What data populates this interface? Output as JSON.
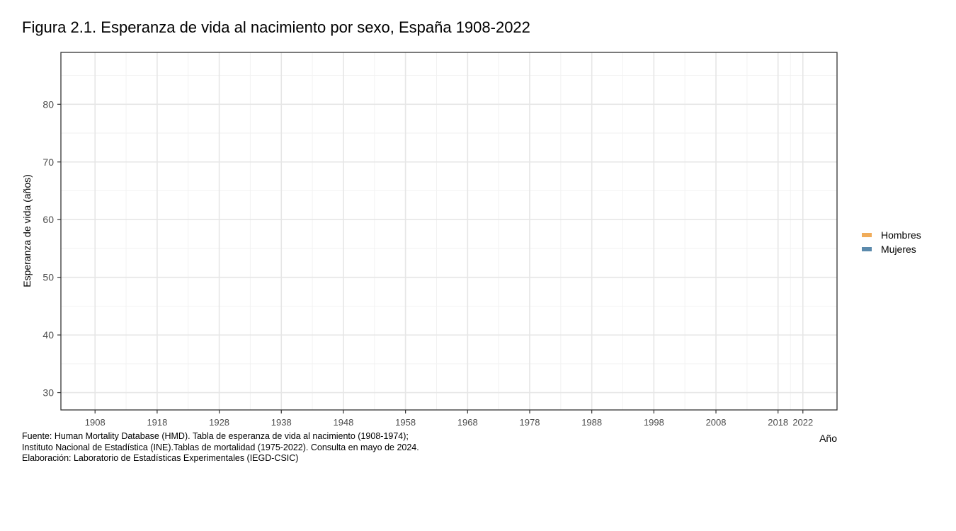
{
  "chart_data": {
    "type": "line",
    "title": "Figura 2.1. Esperanza de vida al nacimiento por sexo, España 1908-2022",
    "xlabel": "Año",
    "ylabel": "Esperanza de vida (años)",
    "xlim": [
      1902.5,
      2027.5
    ],
    "ylim": [
      27,
      89
    ],
    "x_ticks": [
      1908,
      1918,
      1928,
      1938,
      1948,
      1958,
      1968,
      1978,
      1988,
      1998,
      2008,
      2018,
      2022
    ],
    "x_minor_ticks": [
      1913,
      1923,
      1933,
      1943,
      1953,
      1963,
      1973,
      1983,
      1993,
      2003,
      2013,
      2020
    ],
    "y_ticks": [
      30,
      40,
      50,
      60,
      70,
      80
    ],
    "y_minor_ticks": [
      35,
      45,
      55,
      65,
      75,
      85
    ],
    "grid": true,
    "legend_position": "right",
    "series": [
      {
        "name": "Hombres",
        "color": "#f0ac5a",
        "values": []
      },
      {
        "name": "Mujeres",
        "color": "#5b8aac",
        "values": []
      }
    ]
  },
  "caption": [
    "Fuente: Human Mortality Database (HMD). Tabla de esperanza de vida al nacimiento (1908-1974);",
    "Instituto Nacional de Estadística (INE).Tablas de mortalidad (1975-2022). Consulta en mayo de 2024.",
    "Elaboración: Laboratorio de Estadísticas Experimentales (IEGD-CSIC)"
  ]
}
